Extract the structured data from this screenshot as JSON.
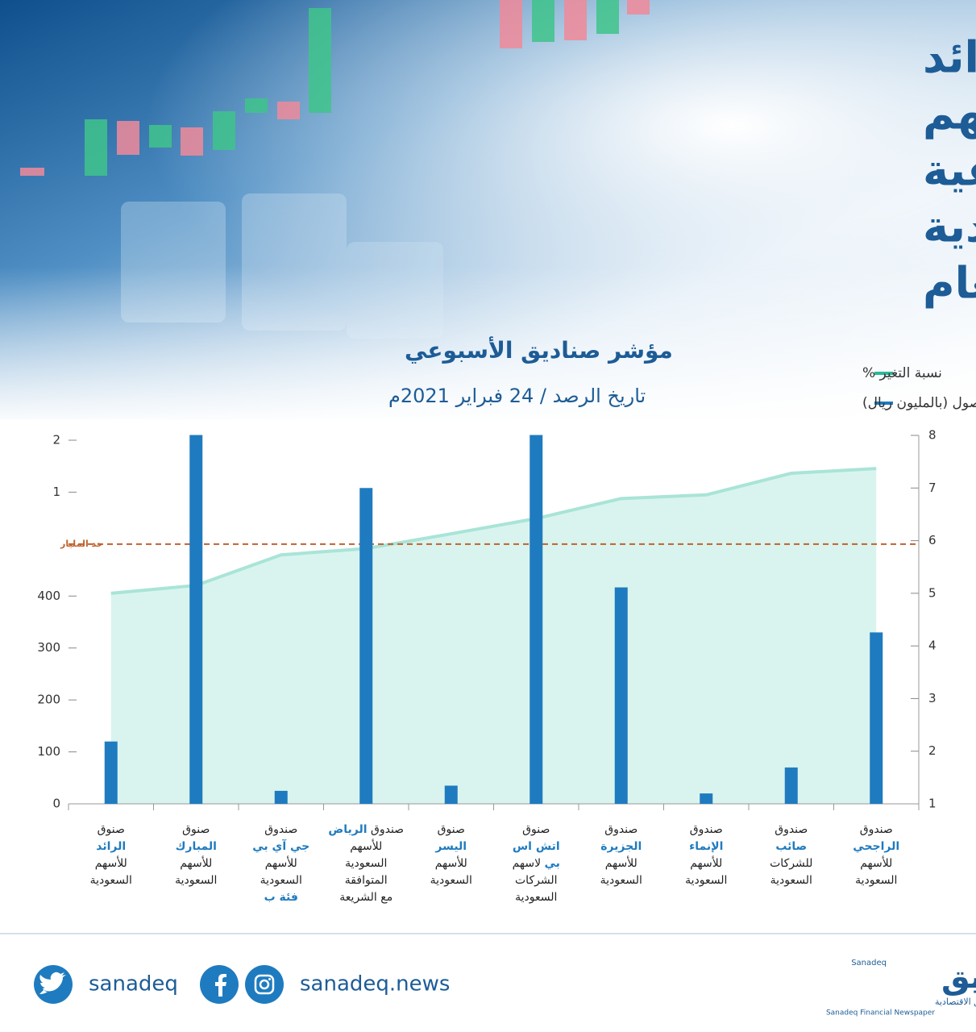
{
  "chart_data": {
    "type": "bar-area",
    "title": [
      "أعلى عوائد",
      "صناديق الأسهم",
      "المحلية الشرعية",
      "بالسوق السعودية",
      "منذ بداية العام"
    ],
    "subtitle": "مؤشر صناديق الأسبوعي",
    "date": "تاريخ الرصد / 24 فبراير 2021م",
    "categories": [
      [
        [
          "صنوق"
        ],
        [
          {
            "a": "الرائد"
          }
        ],
        [
          "للأسهم"
        ],
        [
          "السعودية"
        ]
      ],
      [
        [
          "صنوق"
        ],
        [
          {
            "a": "المبارك"
          }
        ],
        [
          "للأسهم"
        ],
        [
          "السعودية"
        ]
      ],
      [
        [
          "صندوق"
        ],
        [
          {
            "a": "جي آي بي"
          }
        ],
        [
          "للأسهم"
        ],
        [
          "السعودية"
        ],
        [
          {
            "a": "فئة ب"
          }
        ]
      ],
      [
        [
          "صندوق ",
          {
            "a": "الرياض"
          }
        ],
        [
          "للأسهم"
        ],
        [
          "السعودية"
        ],
        [
          "المتوافقة"
        ],
        [
          "مع الشريعة"
        ]
      ],
      [
        [
          "صنوق"
        ],
        [
          {
            "a": "اليسر"
          }
        ],
        [
          "للأسهم"
        ],
        [
          "السعودية"
        ]
      ],
      [
        [
          "صنوق"
        ],
        [
          {
            "a": "اتش اس"
          }
        ],
        [
          {
            "a": "بي"
          },
          " لاسهم"
        ],
        [
          "الشركات"
        ],
        [
          "السعودية"
        ]
      ],
      [
        [
          "صندوق"
        ],
        [
          {
            "a": "الجزيرة"
          }
        ],
        [
          "للأسهم"
        ],
        [
          "السعودية"
        ]
      ],
      [
        [
          "صندوق"
        ],
        [
          {
            "a": "الإنماء"
          }
        ],
        [
          "للأسهم"
        ],
        [
          "السعودية"
        ]
      ],
      [
        [
          "صندوق"
        ],
        [
          {
            "a": "صائب"
          }
        ],
        [
          "للشركات"
        ],
        [
          "السعودية"
        ]
      ],
      [
        [
          "صندوق"
        ],
        [
          {
            "a": "الراجحي"
          }
        ],
        [
          "للأسهم"
        ],
        [
          "السعودية"
        ]
      ]
    ],
    "series": [
      {
        "name": "نسبة التغير %",
        "color": "#2bb89a",
        "line_color": "#a9e4d7",
        "fill": "#d9f4ee",
        "axis": "y2",
        "values": [
          5.0,
          5.15,
          5.73,
          5.85,
          6.13,
          6.42,
          6.8,
          6.87,
          7.28,
          7.37
        ]
      },
      {
        "name": "حجم الأصول (بالمليون ريال)",
        "color": "#1f7bbf",
        "axis": "y",
        "values": [
          120,
          2100,
          25,
          1080,
          35,
          2100,
          450,
          20,
          70,
          330
        ]
      }
    ],
    "ylim": [
      0,
      2100
    ],
    "yticks": [
      0,
      100,
      200,
      300,
      400,
      {
        "value": 1000,
        "label": "1"
      },
      {
        "value": 2000,
        "label": "2"
      }
    ],
    "ybreak": {
      "label": "حد المليار",
      "color": "#c0622f"
    },
    "y2lim": [
      1,
      8
    ],
    "y2ticks": [
      1,
      2,
      3,
      4,
      5,
      6,
      7,
      8
    ],
    "legend": "top-right",
    "footer": {
      "twitter": "sanadeq",
      "website": "sanadeq.news",
      "logo": "صناديق",
      "logo_en": "Sanadeq",
      "tagline": "صحيفة صناديق الاقتصادية",
      "tagline_en": "Sanadeq Financial Newspaper"
    }
  }
}
